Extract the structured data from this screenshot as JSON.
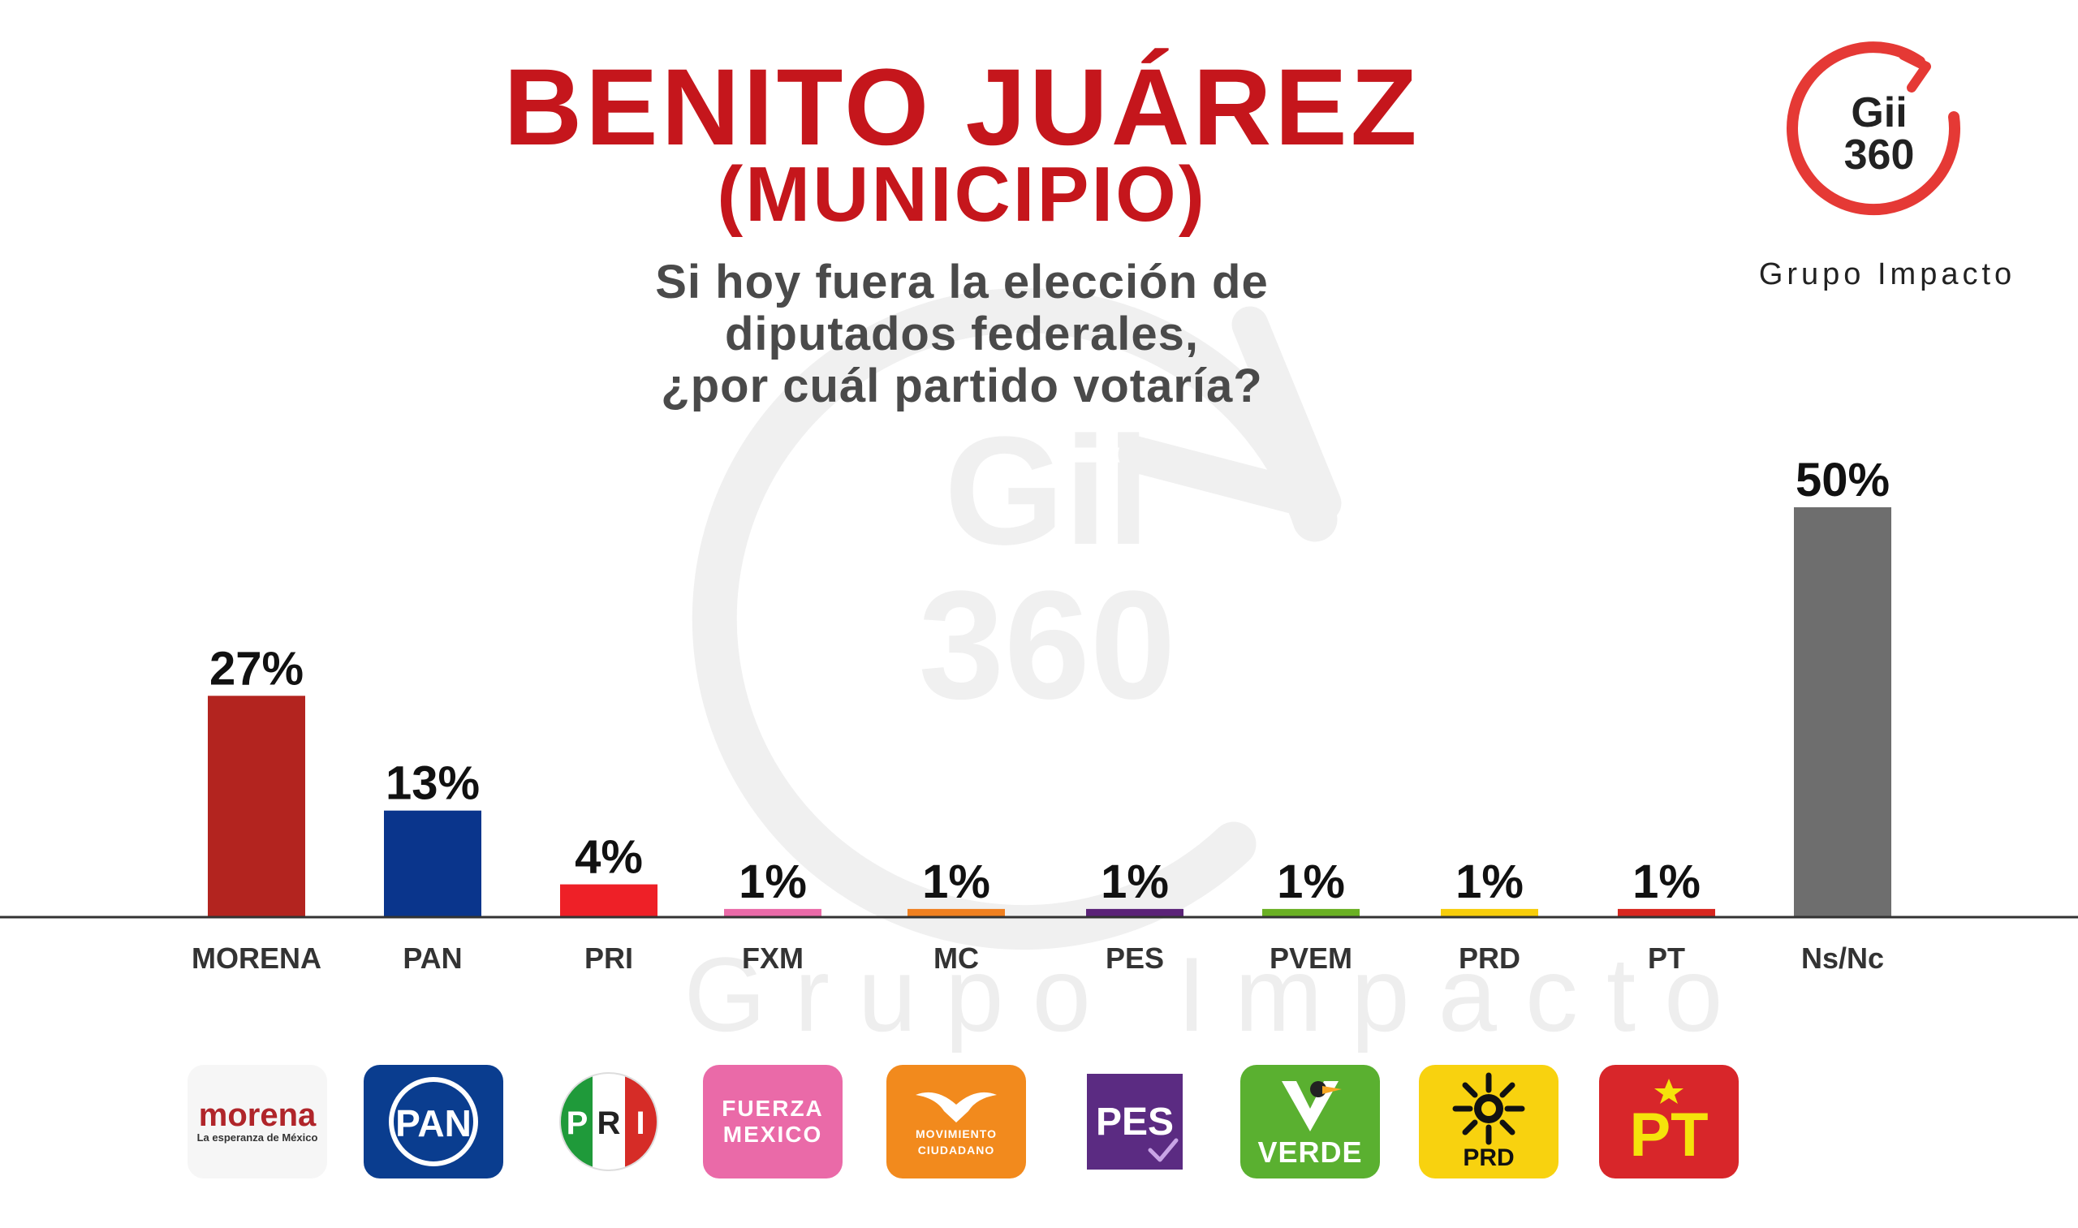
{
  "header": {
    "title": "BENITO JUÁREZ",
    "subtitle": "(MUNICIPIO)",
    "question_lines": [
      "Si hoy fuera la elección de",
      "diputados federales,",
      "¿por cuál partido votaría?"
    ]
  },
  "brand": {
    "logo_line1": "Gii",
    "logo_line2": "360",
    "name": "Grupo Impacto",
    "accent_color": "#e53935"
  },
  "watermark": {
    "line1": "Gii",
    "line2": "360",
    "text": "Grupo Impacto"
  },
  "chart_data": {
    "type": "bar",
    "title": "",
    "xlabel": "",
    "ylabel": "",
    "ylim": [
      0,
      50
    ],
    "grid": false,
    "categories": [
      "MORENA",
      "PAN",
      "PRI",
      "FXM",
      "MC",
      "PES",
      "PVEM",
      "PRD",
      "PT",
      "Ns/Nc"
    ],
    "values": [
      27,
      13,
      4,
      1,
      1,
      1,
      1,
      1,
      1,
      50
    ],
    "value_labels": [
      "27%",
      "13%",
      "4%",
      "1%",
      "1%",
      "1%",
      "1%",
      "1%",
      "1%",
      "50%"
    ],
    "colors": [
      "#b3241f",
      "#0a358c",
      "#ee2027",
      "#ea6aa8",
      "#f08020",
      "#5b2378",
      "#6ab023",
      "#f7cd0a",
      "#d7261f",
      "#6e6e6e"
    ]
  },
  "party_logos": [
    {
      "icon": "morena-logo",
      "line1": "morena",
      "line2": "La esperanza de México"
    },
    {
      "icon": "pan-logo",
      "line1": "PAN"
    },
    {
      "icon": "pri-logo",
      "line1": "PRI"
    },
    {
      "icon": "fuerza-mexico-logo",
      "line1": "FUERZA",
      "line2": "MEXICO"
    },
    {
      "icon": "movimiento-ciudadano-logo",
      "line1": "MOVIMIENTO",
      "line2": "CIUDADANO"
    },
    {
      "icon": "pes-logo",
      "line1": "PES"
    },
    {
      "icon": "verde-logo",
      "line1": "VERDE"
    },
    {
      "icon": "prd-logo",
      "line1": "PRD"
    },
    {
      "icon": "pt-logo",
      "line1": "PT"
    }
  ]
}
